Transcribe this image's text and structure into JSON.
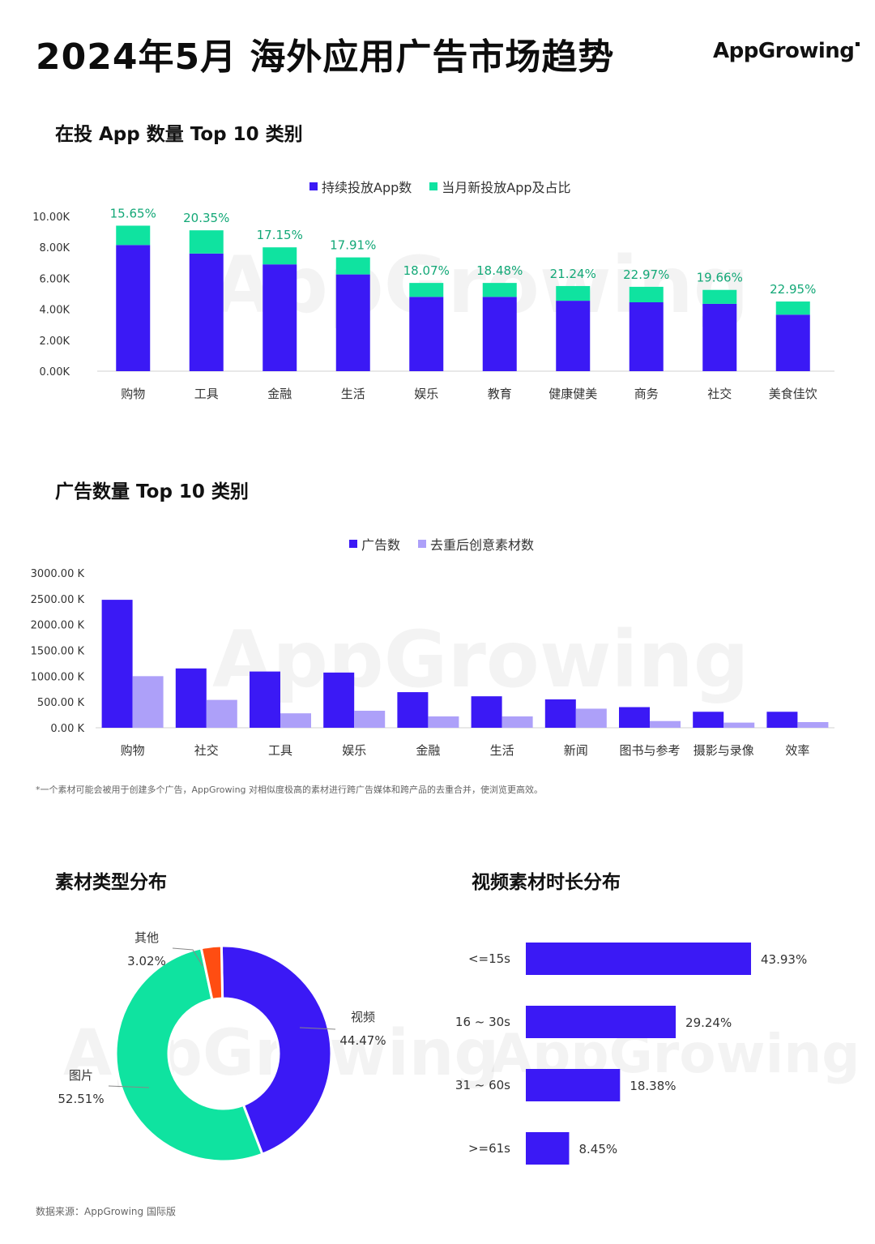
{
  "page": {
    "title": "2024年5月 海外应用广告市场趋势",
    "logo": "AppGrowing",
    "watermark": "AppGrowing",
    "footnote": "*一个素材可能会被用于创建多个广告，AppGrowing 对相似度极高的素材进行跨广告媒体和跨产品的去重合并，使浏览更高效。",
    "source": "数据来源：AppGrowing 国际版"
  },
  "colors": {
    "primary": "#3b19f5",
    "green": "#0fe3a0",
    "lavender": "#ada0f9",
    "orange": "#ff4d12",
    "pct_green": "#13a877"
  },
  "chart_data": [
    {
      "id": "active-apps",
      "type": "bar",
      "stacked": true,
      "title": "在投 App 数量 Top 10 类别",
      "categories": [
        "购物",
        "工具",
        "金融",
        "生活",
        "娱乐",
        "教育",
        "健康健美",
        "商务",
        "社交",
        "美食佳饮"
      ],
      "series": [
        {
          "name": "持续投放App数",
          "color": "#3b19f5",
          "values": [
            8.15,
            7.6,
            6.9,
            6.25,
            4.8,
            4.8,
            4.55,
            4.45,
            4.35,
            3.65
          ]
        },
        {
          "name": "当月新投放App及占比",
          "color": "#0fe3a0",
          "values": [
            1.25,
            1.5,
            1.1,
            1.1,
            0.9,
            0.9,
            0.95,
            1.0,
            0.9,
            0.85
          ]
        }
      ],
      "labels": [
        "15.65%",
        "20.35%",
        "17.15%",
        "17.91%",
        "18.07%",
        "18.48%",
        "21.24%",
        "22.97%",
        "19.66%",
        "22.95%"
      ],
      "yticks": [
        "0.00K",
        "2.00K",
        "4.00K",
        "6.00K",
        "8.00K",
        "10.00K"
      ],
      "ylim": [
        0,
        10
      ],
      "legend": "top-center",
      "grid": false
    },
    {
      "id": "ad-counts",
      "type": "bar",
      "title": "广告数量 Top 10 类别",
      "categories": [
        "购物",
        "社交",
        "工具",
        "娱乐",
        "金融",
        "生活",
        "新闻",
        "图书与参考",
        "摄影与录像",
        "效率"
      ],
      "series": [
        {
          "name": "广告数",
          "color": "#3b19f5",
          "values": [
            2480,
            1150,
            1090,
            1070,
            690,
            610,
            550,
            400,
            310,
            310
          ]
        },
        {
          "name": "去重后创意素材数",
          "color": "#ada0f9",
          "values": [
            1000,
            540,
            280,
            330,
            220,
            220,
            370,
            130,
            100,
            110
          ]
        }
      ],
      "yticks": [
        "0.00 K",
        "500.00 K",
        "1000.00 K",
        "1500.00 K",
        "2000.00 K",
        "2500.00 K",
        "3000.00 K"
      ],
      "ylim": [
        0,
        3000
      ],
      "legend": "top-center",
      "grid": false
    },
    {
      "id": "creative-types",
      "type": "pie",
      "donut": true,
      "title": "素材类型分布",
      "slices": [
        {
          "label": "视频",
          "value": 44.47,
          "text": "44.47%",
          "color": "#3b19f5"
        },
        {
          "label": "图片",
          "value": 52.51,
          "text": "52.51%",
          "color": "#0fe3a0"
        },
        {
          "label": "其他",
          "value": 3.02,
          "text": "3.02%",
          "color": "#ff4d12"
        }
      ]
    },
    {
      "id": "video-durations",
      "type": "bar",
      "orientation": "horizontal",
      "title": "视频素材时长分布",
      "categories": [
        "<=15s",
        "16 ~ 30s",
        "31 ~ 60s",
        ">=61s"
      ],
      "values": [
        43.93,
        29.24,
        18.38,
        8.45
      ],
      "labels": [
        "43.93%",
        "29.24%",
        "18.38%",
        "8.45%"
      ],
      "color": "#3b19f5"
    }
  ]
}
